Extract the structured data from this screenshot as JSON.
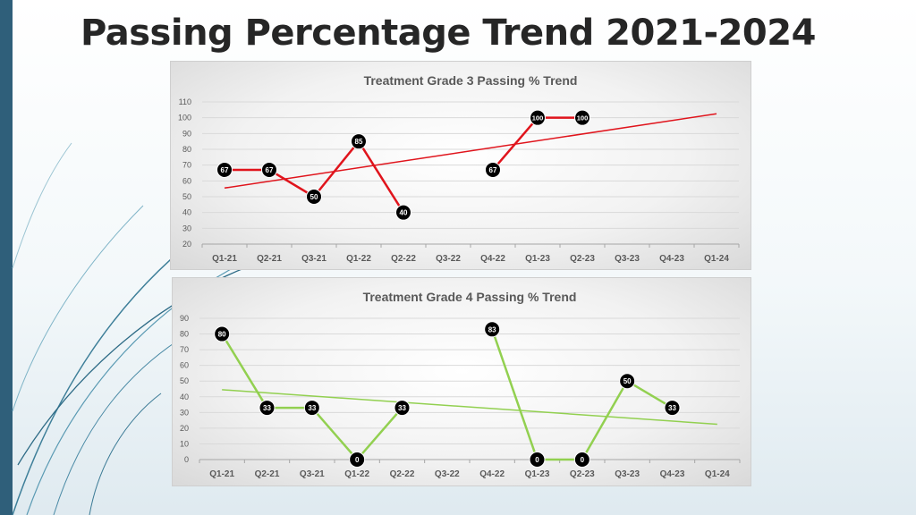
{
  "slide": {
    "title": "Passing Percentage Trend 2021-2024"
  },
  "colors": {
    "background_top": "#ffffff",
    "accent_bar": "#2f5f7a",
    "series_grade3": "#e0141c",
    "series_grade4": "#92d050",
    "marker_fill": "#000000"
  },
  "chart_data": [
    {
      "type": "line",
      "title": "Treatment Grade 3 Passing % Trend",
      "categories": [
        "Q1-21",
        "Q2-21",
        "Q3-21",
        "Q1-22",
        "Q2-22",
        "Q3-22",
        "Q4-22",
        "Q1-23",
        "Q2-23",
        "Q3-23",
        "Q4-23",
        "Q1-24"
      ],
      "series": [
        {
          "name": "Grade 3 Passing %",
          "values": [
            67,
            67,
            50,
            85,
            40,
            null,
            67,
            100,
            100,
            null,
            null,
            null
          ],
          "color": "#e0141c"
        }
      ],
      "trendline": {
        "type": "linear",
        "start": 55.5,
        "end": 102.5,
        "color": "#e0141c"
      },
      "yticks": [
        20,
        30,
        40,
        50,
        60,
        70,
        80,
        90,
        100,
        110
      ],
      "ylim": [
        20,
        110
      ],
      "xlabel": "",
      "ylabel": "",
      "grid": true
    },
    {
      "type": "line",
      "title": "Treatment Grade 4 Passing % Trend",
      "categories": [
        "Q1-21",
        "Q2-21",
        "Q3-21",
        "Q1-22",
        "Q2-22",
        "Q3-22",
        "Q4-22",
        "Q1-23",
        "Q2-23",
        "Q3-23",
        "Q4-23",
        "Q1-24"
      ],
      "series": [
        {
          "name": "Grade 4 Passing %",
          "values": [
            80,
            33,
            33,
            0,
            33,
            null,
            83,
            0,
            0,
            50,
            33,
            null
          ],
          "color": "#92d050"
        }
      ],
      "trendline": {
        "type": "linear",
        "start": 44.5,
        "end": 22.5,
        "color": "#92d050"
      },
      "yticks": [
        0,
        10,
        20,
        30,
        40,
        50,
        60,
        70,
        80,
        90
      ],
      "ylim": [
        0,
        90
      ],
      "xlabel": "",
      "ylabel": "",
      "grid": true
    }
  ]
}
